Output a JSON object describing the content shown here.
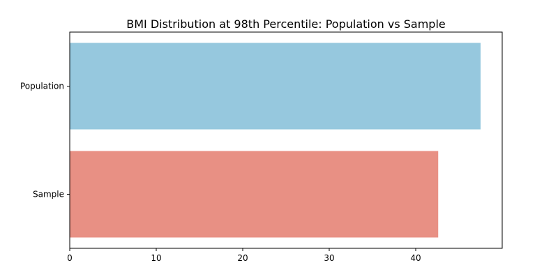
{
  "chart_data": {
    "type": "bar",
    "orientation": "horizontal",
    "title": "BMI Distribution at 98th Percentile: Population vs Sample",
    "xlabel": "",
    "ylabel": "",
    "categories": [
      "Population",
      "Sample"
    ],
    "values": [
      47.5,
      42.6
    ],
    "colors": [
      "#96c8de",
      "#e89084"
    ],
    "xlim": [
      0,
      50
    ],
    "xticks": [
      "0",
      "10",
      "20",
      "30",
      "40"
    ],
    "grid": false
  }
}
